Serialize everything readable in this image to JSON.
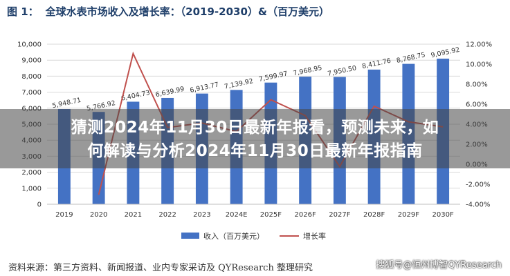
{
  "header": {
    "figure_tag": "图 1：",
    "title": "全球水表市场收入及增长率：（2019-2030）&（百万美元）"
  },
  "overlay": {
    "line1": "猜测2024年11月30日最新年报看，预测未来，如",
    "line2": "何解读与分析2024年11月30日最新年报指南"
  },
  "footer": {
    "source": "资料来源：第三方资料、新闻报道、业内专家采访及 QYResearch 整理研究",
    "watermark": "搜狐号@恒州博智QYResearch"
  },
  "colors": {
    "bar": "#4472c4",
    "line": "#c0504d",
    "grid": "#d9d9d9"
  },
  "chart_data": {
    "type": "bar",
    "title": "全球水表市场收入及增长率：（2019-2030）&（百万美元）",
    "categories": [
      "2019",
      "2020",
      "2021",
      "2022",
      "2023",
      "2024E",
      "2025F",
      "2026F",
      "2027F",
      "2028F",
      "2029F",
      "2030F"
    ],
    "series": [
      {
        "name": "收入（百万美元）",
        "type": "bar",
        "axis": "left",
        "values": [
          5948.71,
          5766.92,
          6404.73,
          6639.99,
          6913.77,
          7139.92,
          7599.97,
          7968.95,
          7950.5,
          8411.76,
          8768.75,
          9095.92
        ],
        "labels": [
          "5,948.71",
          "5,766.92",
          "6,404.73",
          "6,639.99",
          "6,913.77",
          "7,139.92",
          "7,599.97",
          "7,968.95",
          "7,950.50",
          "8,411.76",
          "8,768.75",
          "9,095.92"
        ]
      },
      {
        "name": "增长率",
        "type": "line",
        "axis": "right",
        "values": [
          null,
          -3.06,
          11.06,
          3.67,
          4.12,
          3.27,
          6.44,
          4.86,
          -0.23,
          5.8,
          4.24,
          3.73
        ]
      }
    ],
    "ylim": [
      0,
      10000
    ],
    "yticks": [
      0,
      1000,
      2000,
      3000,
      4000,
      5000,
      6000,
      7000,
      8000,
      9000,
      10000
    ],
    "ytick_labels": [
      "0",
      "1,000",
      "2,000",
      "3,000",
      "4,000",
      "5,000",
      "6,000",
      "7,000",
      "8,000",
      "9,000",
      "10,000"
    ],
    "y2lim": [
      -4,
      12
    ],
    "y2ticks": [
      -4,
      -2,
      0,
      2,
      4,
      6,
      8,
      10,
      12
    ],
    "y2tick_labels": [
      "-4.00%",
      "-2.00%",
      "0.00%",
      "2.00%",
      "4.00%",
      "6.00%",
      "8.00%",
      "10.00%",
      "12.00%"
    ],
    "grid": true,
    "legend": "bottom"
  }
}
